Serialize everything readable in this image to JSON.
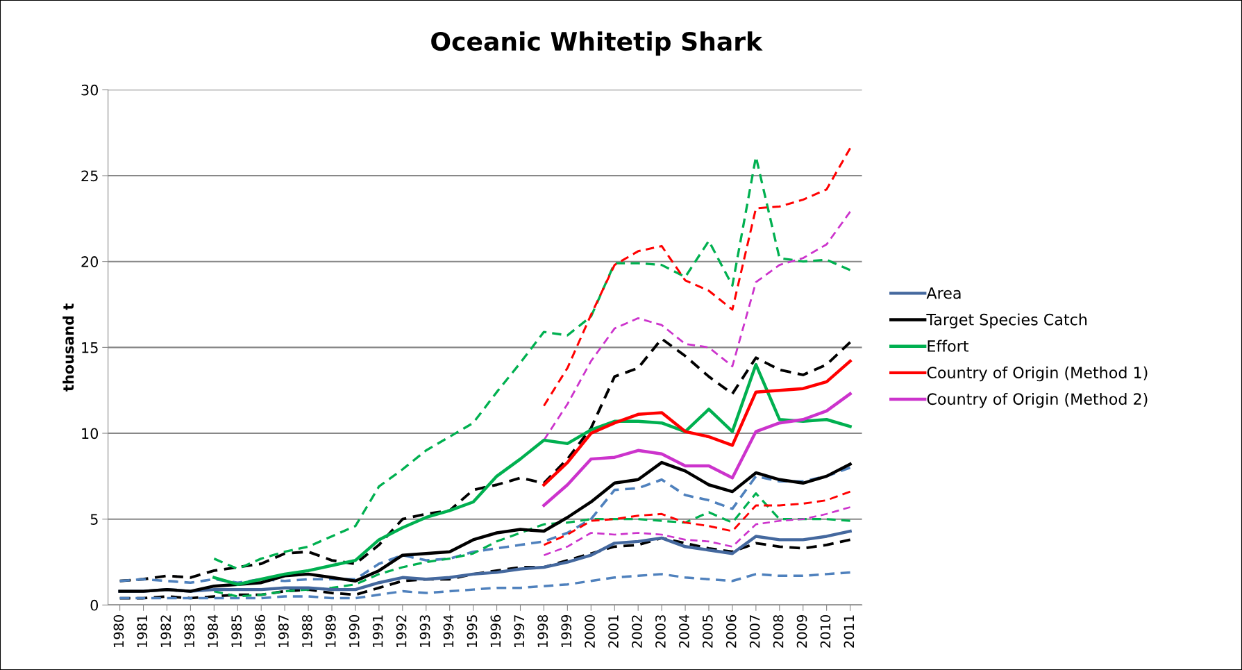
{
  "chart_data": {
    "type": "line",
    "title": "Oceanic Whitetip Shark",
    "ylabel": "thousand t",
    "categories": [
      "1980",
      "1981",
      "1982",
      "1983",
      "1984",
      "1985",
      "1986",
      "1987",
      "1988",
      "1989",
      "1990",
      "1991",
      "1992",
      "1993",
      "1994",
      "1995",
      "1996",
      "1997",
      "1998",
      "1999",
      "2000",
      "2001",
      "2002",
      "2003",
      "2004",
      "2005",
      "2006",
      "2007",
      "2008",
      "2009",
      "2010",
      "2011"
    ],
    "ylim": [
      0,
      30
    ],
    "yticks": [
      0,
      5,
      10,
      15,
      20,
      25,
      30
    ],
    "grid": "y",
    "legend": "right",
    "marker": "none",
    "series": [
      {
        "color": "#000000",
        "line_style": "dashed",
        "values": [
          1.4,
          1.5,
          1.7,
          1.6,
          2.0,
          2.2,
          2.4,
          3.0,
          3.1,
          2.6,
          2.4,
          3.5,
          5.0,
          5.3,
          5.5,
          6.7,
          7.0,
          7.4,
          7.1,
          8.5,
          10.3,
          13.3,
          13.8,
          15.5,
          14.5,
          13.3,
          12.3,
          14.4,
          13.7,
          13.4,
          14.0,
          15.3
        ]
      },
      {
        "color": "#000000",
        "line_style": "dashed",
        "values": [
          0.4,
          0.4,
          0.5,
          0.4,
          0.5,
          0.6,
          0.6,
          0.8,
          0.9,
          0.7,
          0.6,
          1.0,
          1.4,
          1.5,
          1.5,
          1.8,
          2.0,
          2.2,
          2.2,
          2.6,
          3.0,
          3.4,
          3.5,
          3.9,
          3.6,
          3.3,
          3.1,
          3.6,
          3.4,
          3.3,
          3.5,
          3.8
        ]
      },
      {
        "color": "#4f81bd",
        "line_style": "dashed",
        "values": [
          1.4,
          1.5,
          1.4,
          1.3,
          1.5,
          1.3,
          1.5,
          1.4,
          1.5,
          1.5,
          1.5,
          2.4,
          2.9,
          2.6,
          2.7,
          3.1,
          3.3,
          3.5,
          3.7,
          4.2,
          5.0,
          6.7,
          6.8,
          7.3,
          6.4,
          6.1,
          5.6,
          7.5,
          7.2,
          7.2,
          7.5,
          8.0
        ]
      },
      {
        "color": "#4f81bd",
        "line_style": "dashed",
        "values": [
          0.4,
          0.4,
          0.4,
          0.4,
          0.4,
          0.4,
          0.4,
          0.5,
          0.5,
          0.4,
          0.4,
          0.6,
          0.8,
          0.7,
          0.8,
          0.9,
          1.0,
          1.0,
          1.1,
          1.2,
          1.4,
          1.6,
          1.7,
          1.8,
          1.6,
          1.5,
          1.4,
          1.8,
          1.7,
          1.7,
          1.8,
          1.9
        ]
      },
      {
        "color": "#00b050",
        "line_style": "dashed",
        "values": [
          null,
          null,
          null,
          null,
          2.7,
          2.1,
          2.7,
          3.1,
          3.4,
          4.0,
          4.6,
          6.9,
          7.9,
          9.0,
          9.8,
          10.6,
          12.4,
          14.1,
          15.9,
          15.7,
          16.8,
          19.9,
          19.9,
          19.8,
          19.1,
          21.2,
          18.6,
          26.1,
          20.2,
          20.0,
          20.1,
          19.5
        ]
      },
      {
        "color": "#00b050",
        "line_style": "dashed",
        "values": [
          null,
          null,
          null,
          null,
          0.8,
          0.5,
          0.6,
          0.8,
          0.9,
          1.0,
          1.2,
          1.8,
          2.2,
          2.5,
          2.7,
          3.0,
          3.7,
          4.2,
          4.7,
          4.8,
          5.0,
          5.0,
          5.0,
          4.9,
          4.8,
          5.4,
          4.8,
          6.5,
          5.0,
          5.0,
          5.0,
          4.9
        ]
      },
      {
        "color": "#ff0000",
        "line_style": "dashed",
        "values": [
          null,
          null,
          null,
          null,
          null,
          null,
          null,
          null,
          null,
          null,
          null,
          null,
          null,
          null,
          null,
          null,
          null,
          null,
          11.6,
          13.8,
          16.9,
          19.8,
          20.6,
          20.9,
          18.9,
          18.3,
          17.2,
          23.1,
          23.2,
          23.6,
          24.2,
          26.6
        ]
      },
      {
        "color": "#ff0000",
        "line_style": "dashed",
        "values": [
          null,
          null,
          null,
          null,
          null,
          null,
          null,
          null,
          null,
          null,
          null,
          null,
          null,
          null,
          null,
          null,
          null,
          null,
          3.5,
          4.1,
          4.9,
          5.0,
          5.2,
          5.3,
          4.8,
          4.6,
          4.3,
          5.8,
          5.8,
          5.9,
          6.1,
          6.6
        ]
      },
      {
        "color": "#cc33cc",
        "line_style": "dashed",
        "values": [
          null,
          null,
          null,
          null,
          null,
          null,
          null,
          null,
          null,
          null,
          null,
          null,
          null,
          null,
          null,
          null,
          null,
          null,
          9.6,
          11.7,
          14.2,
          16.1,
          16.7,
          16.3,
          15.2,
          15.0,
          13.9,
          18.8,
          19.8,
          20.2,
          21.0,
          22.9
        ]
      },
      {
        "color": "#cc33cc",
        "line_style": "dashed",
        "values": [
          null,
          null,
          null,
          null,
          null,
          null,
          null,
          null,
          null,
          null,
          null,
          null,
          null,
          null,
          null,
          null,
          null,
          null,
          2.9,
          3.4,
          4.2,
          4.1,
          4.2,
          4.1,
          3.8,
          3.7,
          3.4,
          4.7,
          4.9,
          5.0,
          5.3,
          5.7
        ]
      },
      {
        "name": "Area",
        "color": "#44689e",
        "line_style": "solid",
        "values": [
          0.8,
          0.8,
          0.9,
          0.8,
          0.9,
          0.9,
          0.9,
          1.0,
          1.0,
          0.9,
          0.9,
          1.3,
          1.6,
          1.5,
          1.6,
          1.8,
          1.9,
          2.1,
          2.2,
          2.5,
          2.9,
          3.6,
          3.7,
          3.9,
          3.4,
          3.2,
          3.0,
          4.0,
          3.8,
          3.8,
          4.0,
          4.3
        ]
      },
      {
        "name": "Target Species Catch",
        "color": "#000000",
        "line_style": "solid",
        "values": [
          0.8,
          0.8,
          0.9,
          0.8,
          1.1,
          1.2,
          1.3,
          1.7,
          1.8,
          1.6,
          1.4,
          2.0,
          2.9,
          3.0,
          3.1,
          3.8,
          4.2,
          4.4,
          4.3,
          5.1,
          6.0,
          7.1,
          7.3,
          8.3,
          7.8,
          7.0,
          6.6,
          7.7,
          7.3,
          7.1,
          7.5,
          8.2
        ]
      },
      {
        "name": "Effort",
        "color": "#00b050",
        "line_style": "solid",
        "values": [
          null,
          null,
          null,
          null,
          1.6,
          1.2,
          1.5,
          1.8,
          2.0,
          2.3,
          2.6,
          3.8,
          4.5,
          5.1,
          5.5,
          6.0,
          7.5,
          8.5,
          9.6,
          9.4,
          10.2,
          10.7,
          10.7,
          10.6,
          10.1,
          11.4,
          10.1,
          14.0,
          10.8,
          10.7,
          10.8,
          10.4
        ]
      },
      {
        "name": "Country of Origin (Method 1)",
        "color": "#ff0000",
        "line_style": "solid",
        "values": [
          null,
          null,
          null,
          null,
          null,
          null,
          null,
          null,
          null,
          null,
          null,
          null,
          null,
          null,
          null,
          null,
          null,
          null,
          7.0,
          8.3,
          10.0,
          10.6,
          11.1,
          11.2,
          10.1,
          9.8,
          9.3,
          12.4,
          12.5,
          12.6,
          13.0,
          14.2
        ]
      },
      {
        "name": "Country of Origin (Method 2)",
        "color": "#cc33cc",
        "line_style": "solid",
        "values": [
          null,
          null,
          null,
          null,
          null,
          null,
          null,
          null,
          null,
          null,
          null,
          null,
          null,
          null,
          null,
          null,
          null,
          null,
          5.8,
          7.0,
          8.5,
          8.6,
          9.0,
          8.8,
          8.1,
          8.1,
          7.4,
          10.1,
          10.6,
          10.8,
          11.3,
          12.3
        ]
      }
    ]
  }
}
